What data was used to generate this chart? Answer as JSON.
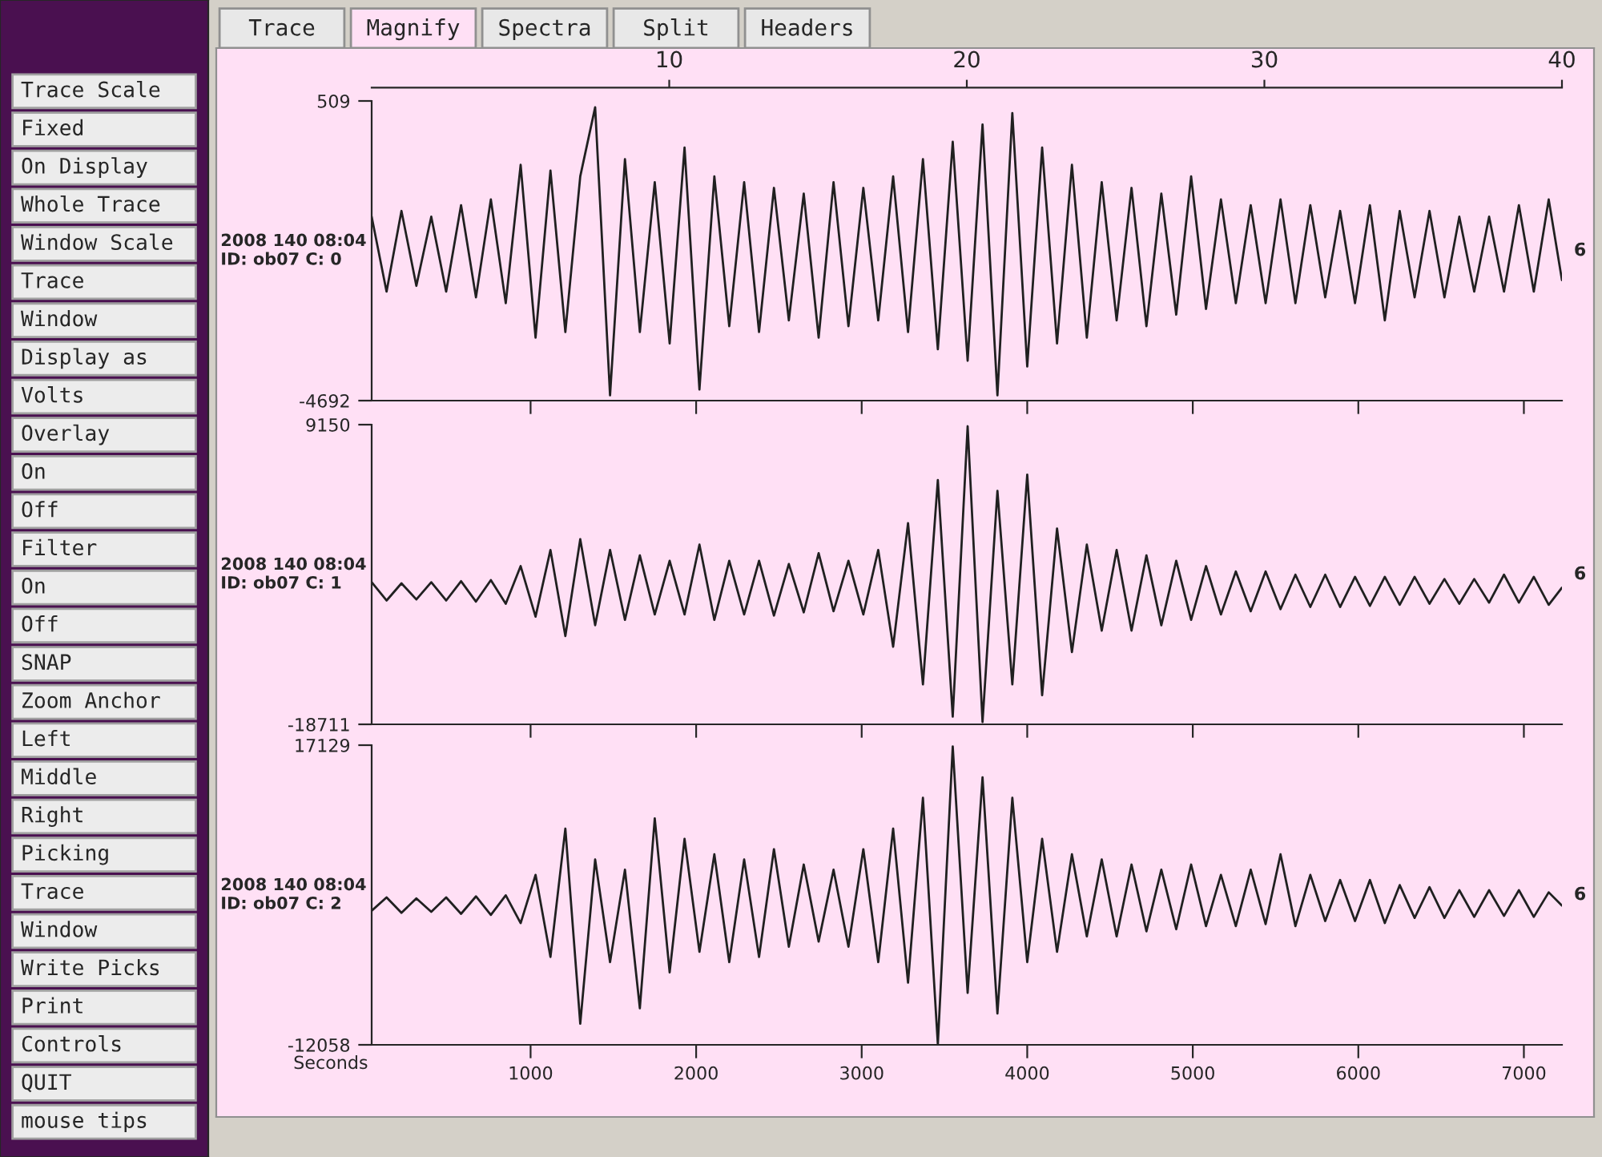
{
  "chart_data": [
    {
      "type": "other",
      "annotations": [
        "Trace",
        "Magnify",
        "Spectra",
        "Split",
        "Headers"
      ]
    },
    {
      "type": "other",
      "annotations": [
        "Trace Scale",
        "Fixed",
        "On Display",
        "Whole Trace",
        "Window Scale",
        "Trace",
        "Window",
        "Display as",
        "Volts",
        "Overlay",
        "On",
        "Off",
        "Filter",
        "On",
        "Off",
        "SNAP",
        "Zoom Anchor",
        "Left",
        "Middle",
        "Right",
        "Picking",
        "Trace",
        "Window",
        "Write Picks",
        "Print",
        "Controls",
        "QUIT",
        "mouse tips"
      ]
    },
    {
      "type": "line",
      "ylabel": "2008 140 08:04\nID: ob07 C: 0",
      "y2label": "6",
      "xlim": [
        40,
        7230
      ],
      "xticks": [
        1000,
        2000,
        3000,
        4000,
        5000,
        6000,
        7000
      ],
      "ylim": [
        -4692,
        509
      ],
      "yticks": [
        509,
        -4692
      ],
      "x2lim": [
        0,
        40
      ],
      "x2ticks": [
        10,
        20,
        30,
        40
      ],
      "tick_labels": "y",
      "grid": false,
      "legend": false,
      "x": [
        40,
        130,
        220,
        310,
        400,
        490,
        580,
        670,
        760,
        850,
        940,
        1030,
        1120,
        1210,
        1300,
        1390,
        1480,
        1570,
        1660,
        1750,
        1840,
        1930,
        2020,
        2110,
        2200,
        2290,
        2380,
        2470,
        2560,
        2650,
        2740,
        2830,
        2920,
        3010,
        3100,
        3190,
        3280,
        3370,
        3460,
        3550,
        3640,
        3730,
        3820,
        3910,
        4000,
        4090,
        4180,
        4270,
        4360,
        4450,
        4540,
        4630,
        4720,
        4810,
        4900,
        4990,
        5080,
        5170,
        5260,
        5350,
        5440,
        5530,
        5620,
        5710,
        5800,
        5890,
        5980,
        6070,
        6160,
        6250,
        6340,
        6430,
        6520,
        6610,
        6700,
        6790,
        6880,
        6970,
        7060,
        7150,
        7230
      ],
      "series": [
        {
          "color": "#202020",
          "values": [
            -1500,
            -2800,
            -1400,
            -2700,
            -1500,
            -2800,
            -1300,
            -2900,
            -1200,
            -3000,
            -600,
            -3600,
            -700,
            -3500,
            -800,
            400,
            -4600,
            -500,
            -3500,
            -900,
            -3700,
            -300,
            -4500,
            -800,
            -3400,
            -900,
            -3500,
            -1000,
            -3300,
            -1100,
            -3600,
            -900,
            -3400,
            -1000,
            -3300,
            -800,
            -3500,
            -500,
            -3800,
            -200,
            -4000,
            100,
            -4600,
            300,
            -4100,
            -300,
            -3700,
            -600,
            -3600,
            -900,
            -3300,
            -1000,
            -3400,
            -1100,
            -3200,
            -800,
            -3100,
            -1200,
            -3000,
            -1300,
            -3000,
            -1200,
            -3000,
            -1300,
            -2900,
            -1400,
            -3000,
            -1300,
            -3300,
            -1400,
            -2900,
            -1400,
            -2900,
            -1500,
            -2800,
            -1500,
            -2800,
            -1300,
            -2800,
            -1200,
            -2600
          ]
        }
      ]
    },
    {
      "type": "line",
      "ylabel": "2008 140 08:04\nID: ob07 C: 1",
      "y2label": "6",
      "xlim": [
        40,
        7230
      ],
      "xticks": [
        1000,
        2000,
        3000,
        4000,
        5000,
        6000,
        7000
      ],
      "ylim": [
        -18711,
        9150
      ],
      "yticks": [
        9150,
        -18711
      ],
      "tick_labels": "y",
      "grid": false,
      "legend": false,
      "x": [
        40,
        130,
        220,
        310,
        400,
        490,
        580,
        670,
        760,
        850,
        940,
        1030,
        1120,
        1210,
        1300,
        1390,
        1480,
        1570,
        1660,
        1750,
        1840,
        1930,
        2020,
        2110,
        2200,
        2290,
        2380,
        2470,
        2560,
        2650,
        2740,
        2830,
        2920,
        3010,
        3100,
        3190,
        3280,
        3370,
        3460,
        3550,
        3640,
        3730,
        3820,
        3910,
        4000,
        4090,
        4180,
        4270,
        4360,
        4450,
        4540,
        4630,
        4720,
        4810,
        4900,
        4990,
        5080,
        5170,
        5260,
        5350,
        5440,
        5530,
        5620,
        5710,
        5800,
        5890,
        5980,
        6070,
        6160,
        6250,
        6340,
        6430,
        6520,
        6610,
        6700,
        6790,
        6880,
        6970,
        7060,
        7150,
        7230
      ],
      "series": [
        {
          "color": "#202020",
          "values": [
            -5500,
            -7200,
            -5600,
            -7100,
            -5500,
            -7200,
            -5400,
            -7300,
            -5300,
            -7500,
            -4000,
            -8700,
            -2500,
            -10500,
            -1500,
            -9500,
            -2500,
            -9000,
            -3000,
            -8500,
            -3500,
            -8500,
            -2000,
            -9000,
            -3500,
            -8500,
            -3500,
            -8600,
            -3800,
            -8300,
            -2800,
            -8200,
            -3500,
            -8500,
            -2500,
            -11500,
            0,
            -15000,
            4000,
            -18000,
            9000,
            -18500,
            3000,
            -15000,
            4500,
            -16000,
            -500,
            -12000,
            -2000,
            -10000,
            -2500,
            -10000,
            -3000,
            -9500,
            -3500,
            -9000,
            -4000,
            -8500,
            -4500,
            -8200,
            -4500,
            -8000,
            -4800,
            -7800,
            -4800,
            -7800,
            -5000,
            -7700,
            -5000,
            -7600,
            -5000,
            -7500,
            -5200,
            -7500,
            -5200,
            -7400,
            -4800,
            -7400,
            -5000,
            -7600,
            -6000
          ]
        }
      ]
    },
    {
      "type": "line",
      "ylabel": "2008 140 08:04\nID: ob07 C: 2",
      "y2label": "6",
      "xlabel": "Seconds",
      "xlim": [
        40,
        7230
      ],
      "ylim": [
        -12058,
        17129
      ],
      "yticks": [
        17129,
        -12058
      ],
      "xticks": [
        1000,
        2000,
        3000,
        4000,
        5000,
        6000,
        7000
      ],
      "grid": false,
      "legend": false,
      "x": [
        40,
        130,
        220,
        310,
        400,
        490,
        580,
        670,
        760,
        850,
        940,
        1030,
        1120,
        1210,
        1300,
        1390,
        1480,
        1570,
        1660,
        1750,
        1840,
        1930,
        2020,
        2110,
        2200,
        2290,
        2380,
        2470,
        2560,
        2650,
        2740,
        2830,
        2920,
        3010,
        3100,
        3190,
        3280,
        3370,
        3460,
        3550,
        3640,
        3730,
        3820,
        3910,
        4000,
        4090,
        4180,
        4270,
        4360,
        4450,
        4540,
        4630,
        4720,
        4810,
        4900,
        4990,
        5080,
        5170,
        5260,
        5350,
        5440,
        5530,
        5620,
        5710,
        5800,
        5890,
        5980,
        6070,
        6160,
        6250,
        6340,
        6430,
        6520,
        6610,
        6700,
        6790,
        6880,
        6970,
        7060,
        7150,
        7230
      ],
      "series": [
        {
          "color": "#202020",
          "values": [
            1000,
            2300,
            800,
            2200,
            900,
            2300,
            700,
            2400,
            600,
            2500,
            -200,
            4500,
            -3500,
            9000,
            -10000,
            6000,
            -4000,
            5000,
            -8500,
            10000,
            -5000,
            8000,
            -3000,
            6500,
            -4000,
            6000,
            -3500,
            7000,
            -2500,
            5500,
            -2000,
            5000,
            -2500,
            7000,
            -4000,
            9000,
            -6000,
            12000,
            -12000,
            17000,
            -7000,
            14000,
            -9000,
            12000,
            -4000,
            8000,
            -3000,
            6500,
            -1500,
            6000,
            -1500,
            5500,
            -1000,
            5000,
            -800,
            5500,
            -500,
            4500,
            -500,
            5000,
            -300,
            6500,
            -500,
            4500,
            0,
            4000,
            0,
            4000,
            -200,
            3500,
            300,
            3300,
            300,
            3000,
            400,
            3000,
            500,
            3000,
            400,
            2800,
            1500
          ]
        }
      ]
    }
  ]
}
